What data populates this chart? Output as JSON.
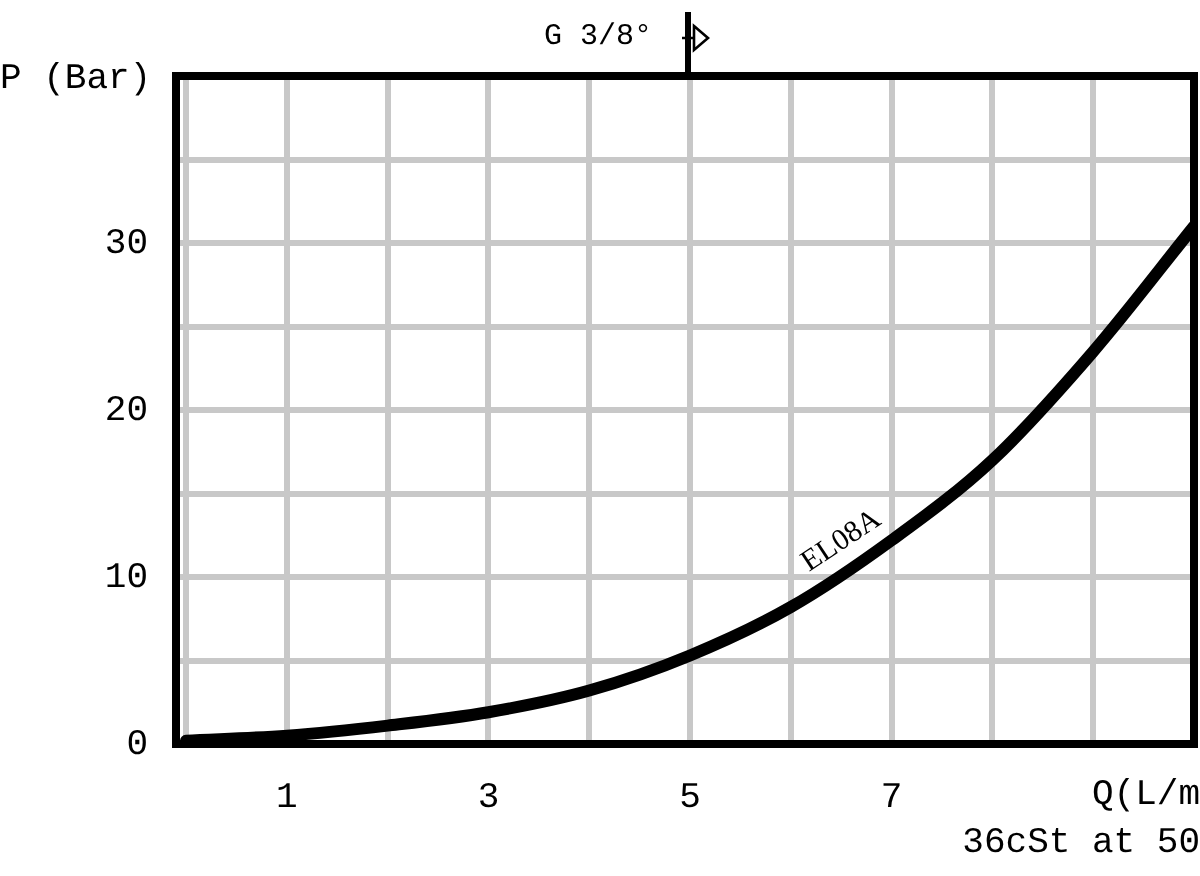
{
  "chart_data": {
    "type": "line",
    "ylabel": "P (Bar)",
    "xlabel": "Q(L/m",
    "x": [
      0,
      1,
      2,
      3,
      4,
      5,
      6,
      7,
      8,
      9,
      10
    ],
    "series": [
      {
        "name": "EL08A",
        "color": "#000000",
        "values": [
          0.2,
          0.5,
          1.1,
          1.9,
          3.2,
          5.3,
          8.2,
          12.2,
          17,
          23.5,
          31
        ]
      }
    ],
    "xlim": [
      -0.1,
      10
    ],
    "xticks": [
      {
        "value": 0,
        "label": null
      },
      1,
      {
        "value": 2,
        "label": null
      },
      3,
      {
        "value": 4,
        "label": null
      },
      5,
      {
        "value": 6,
        "label": null
      },
      7,
      {
        "value": 8,
        "label": null
      },
      {
        "value": 9,
        "label": null
      }
    ],
    "ylim": [
      0,
      40
    ],
    "yticks": [
      0,
      {
        "value": 5,
        "label": null
      },
      10,
      {
        "value": 15,
        "label": null
      },
      20,
      {
        "value": 25,
        "label": null
      },
      30,
      {
        "value": 35,
        "label": null
      },
      {
        "value": 40,
        "label": null
      }
    ],
    "annotations": [
      "G 3/8°",
      "36cSt at 50"
    ],
    "grid": true,
    "legend": false,
    "marker": "none",
    "line_style": "solid"
  }
}
